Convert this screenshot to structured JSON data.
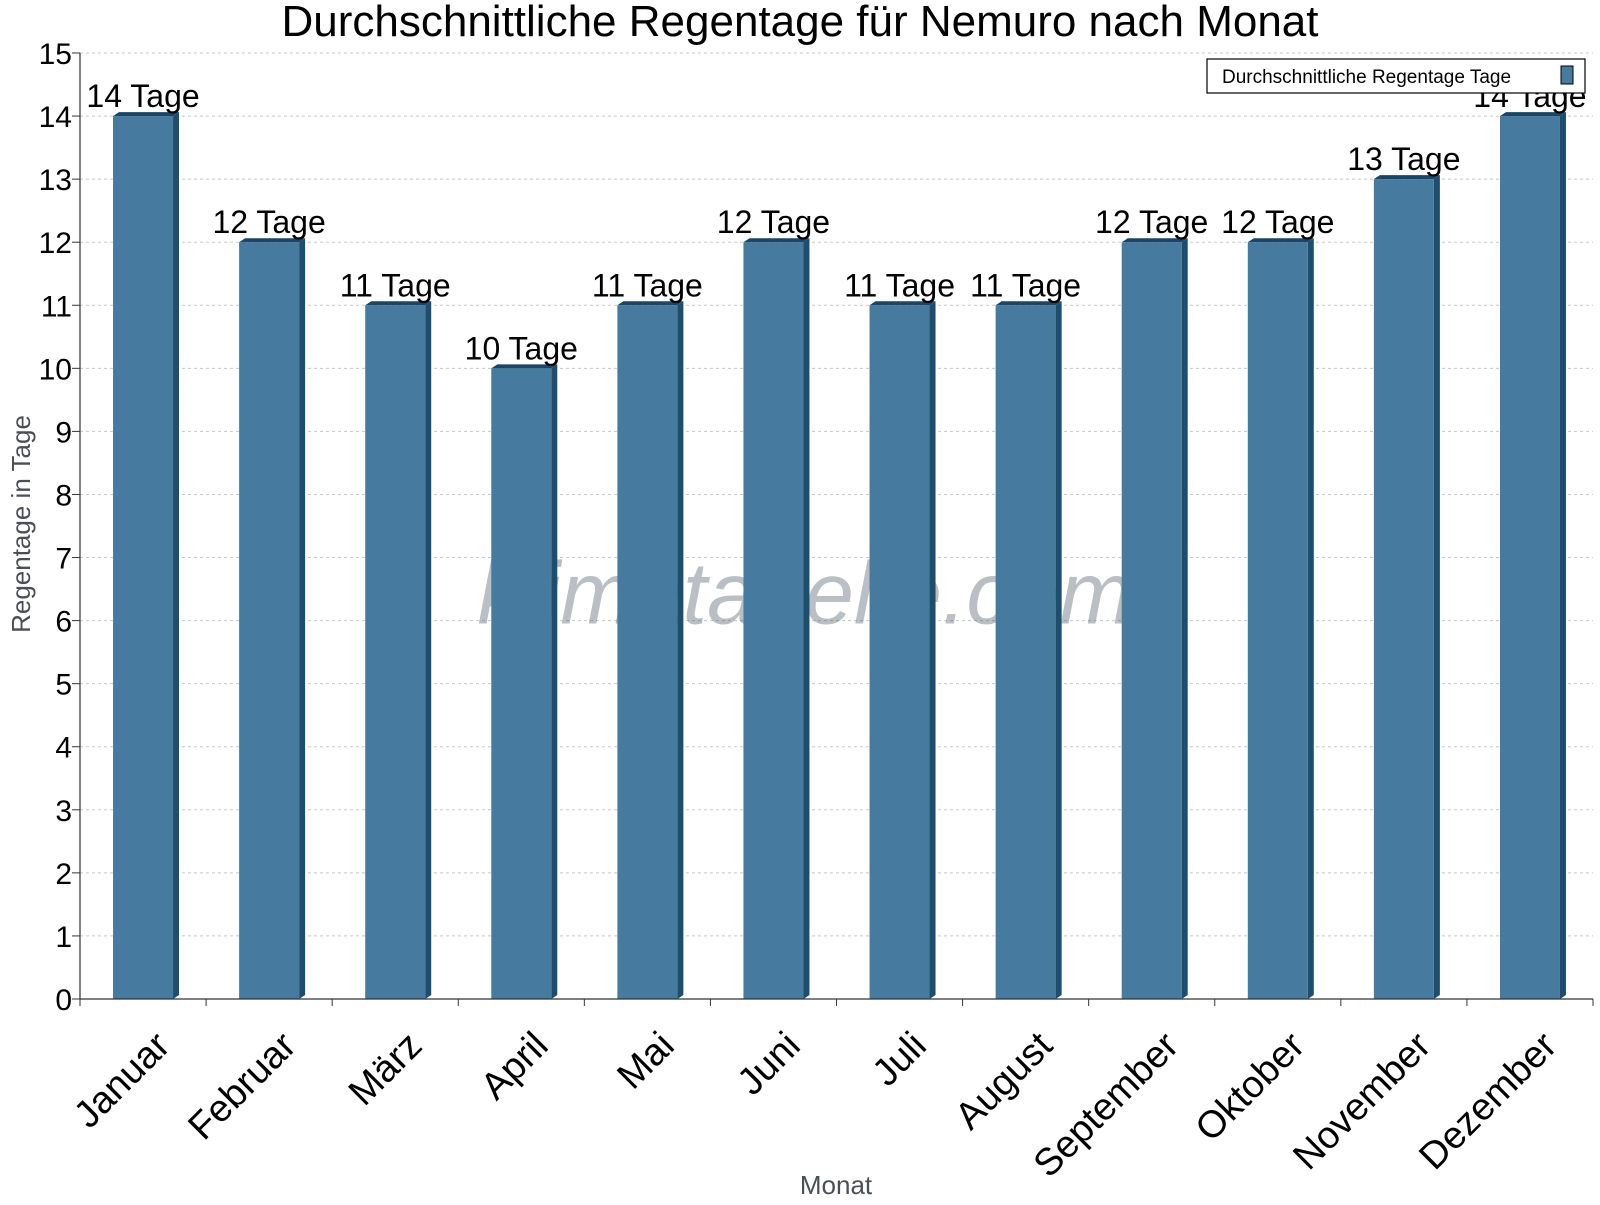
{
  "watermark": "klimatabelle.com",
  "chart_data": {
    "type": "bar",
    "title": "Durchschnittliche Regentage für Nemuro nach Monat",
    "xlabel": "Monat",
    "ylabel": "Regentage in Tage",
    "categories": [
      "Januar",
      "Februar",
      "März",
      "April",
      "Mai",
      "Juni",
      "Juli",
      "August",
      "September",
      "Oktober",
      "November",
      "Dezember"
    ],
    "series": [
      {
        "name": "Durchschnittliche Regentage Tage",
        "values": [
          14,
          12,
          11,
          10,
          11,
          12,
          11,
          11,
          12,
          12,
          13,
          14
        ],
        "labels": [
          "14 Tage",
          "12 Tage",
          "11 Tage",
          "10 Tage",
          "11 Tage",
          "12 Tage",
          "11 Tage",
          "11 Tage",
          "12 Tage",
          "12 Tage",
          "13 Tage",
          "14 Tage"
        ]
      }
    ],
    "ylim": [
      0,
      15
    ],
    "yticks": [
      "0",
      "1",
      "2",
      "3",
      "4",
      "5",
      "6",
      "7",
      "8",
      "9",
      "10",
      "11",
      "12",
      "13",
      "14",
      "15"
    ],
    "grid": true,
    "legend_position": "top-right",
    "colors": {
      "bar": "#467a9e",
      "bar_side": "#1e4d6e",
      "bar_top": "#1a4566",
      "grid": "#c8c8c8",
      "axis": "#333333"
    }
  }
}
